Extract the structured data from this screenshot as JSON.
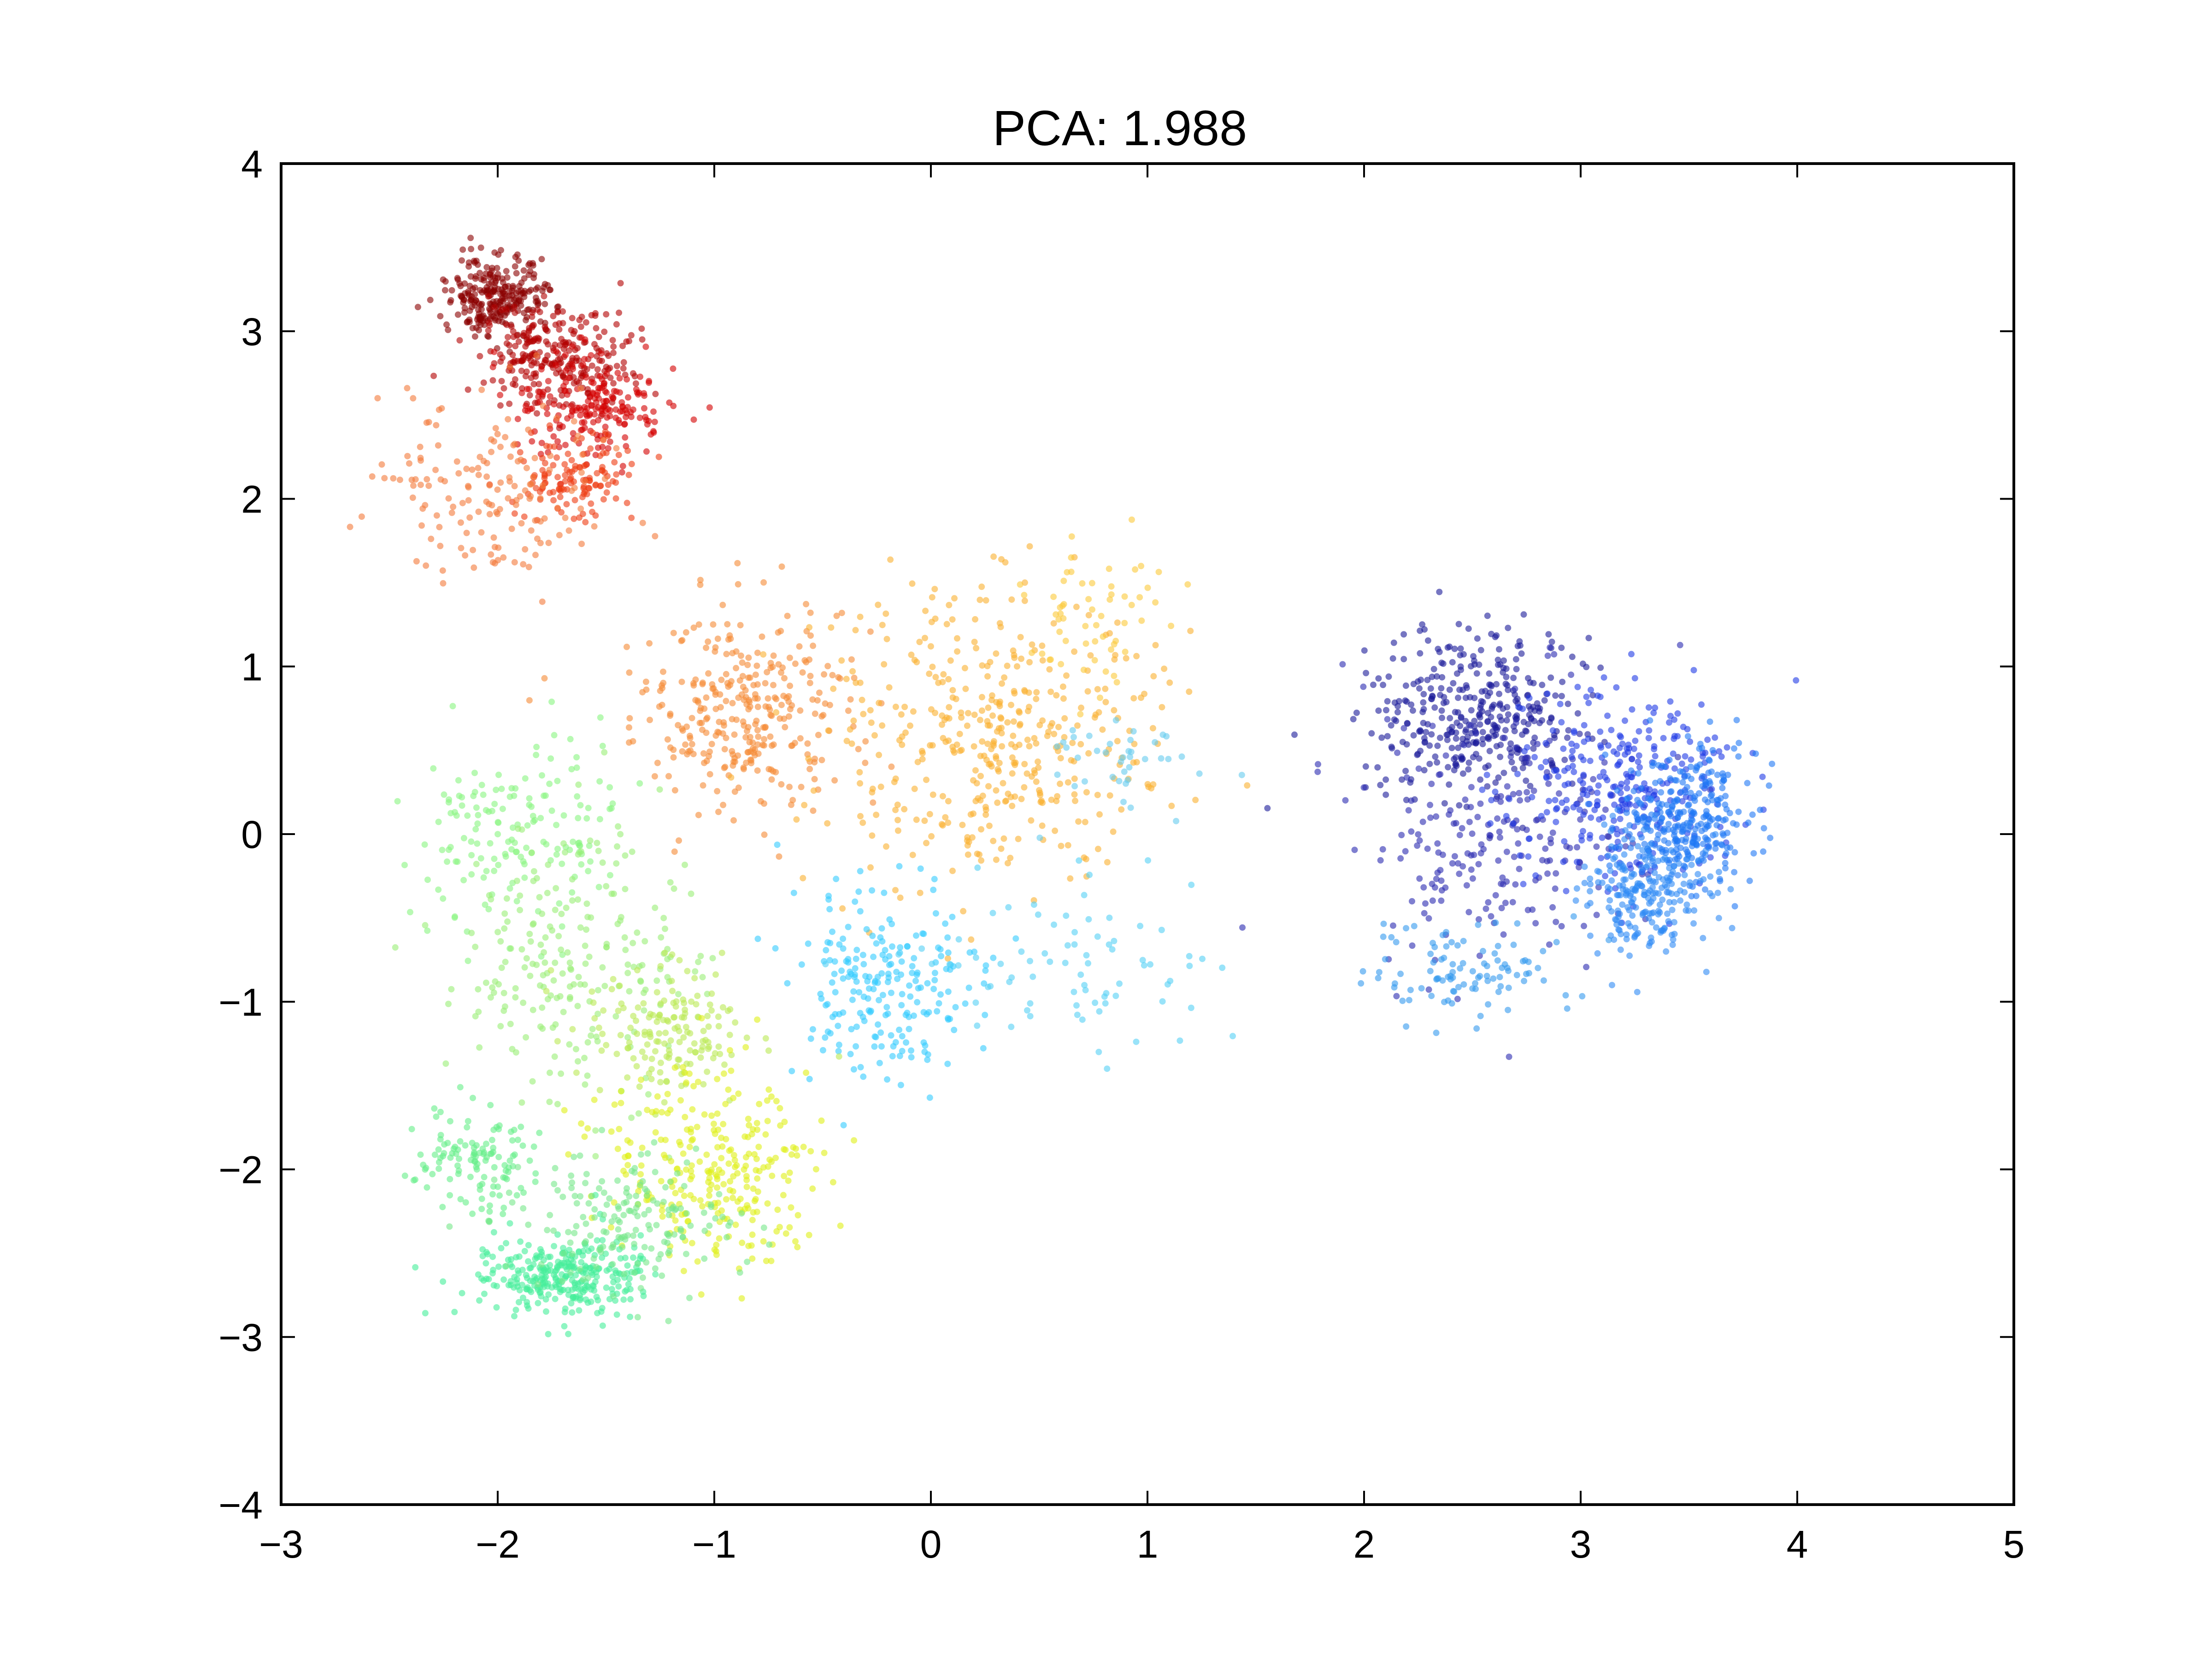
{
  "chart_data": {
    "type": "scatter",
    "title": "PCA: 1.988",
    "xlabel": "",
    "ylabel": "",
    "xlim": [
      -3,
      5
    ],
    "ylim": [
      -4,
      4
    ],
    "xticks": [
      -3,
      -2,
      -1,
      0,
      1,
      2,
      3,
      4,
      5
    ],
    "yticks": [
      -4,
      -3,
      -2,
      -1,
      0,
      1,
      2,
      3,
      4
    ],
    "xtick_labels": [
      "−3",
      "−2",
      "−1",
      "0",
      "1",
      "2",
      "3",
      "4",
      "5"
    ],
    "ytick_labels": [
      "−4",
      "−3",
      "−2",
      "−1",
      "0",
      "1",
      "2",
      "3",
      "4"
    ],
    "grid": false,
    "colormap": "jet",
    "clusters": [
      {
        "color": "#8b0000",
        "center": [
          -2.0,
          3.2
        ],
        "spread": [
          0.12,
          0.12
        ],
        "count": 260
      },
      {
        "color": "#b30000",
        "center": [
          -1.75,
          2.85
        ],
        "spread": [
          0.18,
          0.15
        ],
        "count": 260
      },
      {
        "color": "#d40000",
        "center": [
          -1.55,
          2.55
        ],
        "spread": [
          0.18,
          0.15
        ],
        "count": 200
      },
      {
        "color": "#ee3a10",
        "center": [
          -1.65,
          2.1
        ],
        "spread": [
          0.15,
          0.12
        ],
        "count": 120
      },
      {
        "color": "#f47a3a",
        "center": [
          -2.0,
          2.05
        ],
        "spread": [
          0.28,
          0.28
        ],
        "count": 160
      },
      {
        "color": "#f58a35",
        "center": [
          -0.85,
          0.75
        ],
        "spread": [
          0.25,
          0.3
        ],
        "count": 320
      },
      {
        "color": "#fab030",
        "center": [
          0.3,
          0.6
        ],
        "spread": [
          0.4,
          0.45
        ],
        "count": 420
      },
      {
        "color": "#fbc93a",
        "center": [
          0.75,
          1.3
        ],
        "spread": [
          0.15,
          0.2
        ],
        "count": 60
      },
      {
        "color": "#33ccff",
        "center": [
          -0.2,
          -0.9
        ],
        "spread": [
          0.22,
          0.3
        ],
        "count": 220
      },
      {
        "color": "#55d0f5",
        "center": [
          0.6,
          -0.8
        ],
        "spread": [
          0.35,
          0.25
        ],
        "count": 80
      },
      {
        "color": "#66ccee",
        "center": [
          0.85,
          0.45
        ],
        "spread": [
          0.2,
          0.15
        ],
        "count": 40
      },
      {
        "color": "#88f580",
        "center": [
          -1.9,
          0.0
        ],
        "spread": [
          0.25,
          0.3
        ],
        "count": 160
      },
      {
        "color": "#99ee77",
        "center": [
          -1.65,
          -0.8
        ],
        "spread": [
          0.3,
          0.4
        ],
        "count": 220
      },
      {
        "color": "#bbea55",
        "center": [
          -1.2,
          -1.2
        ],
        "spread": [
          0.2,
          0.2
        ],
        "count": 160
      },
      {
        "color": "#dff018",
        "center": [
          -1.05,
          -2.0
        ],
        "spread": [
          0.25,
          0.3
        ],
        "count": 280
      },
      {
        "color": "#44ee99",
        "center": [
          -1.7,
          -2.65
        ],
        "spread": [
          0.2,
          0.12
        ],
        "count": 300
      },
      {
        "color": "#66ee88",
        "center": [
          -2.1,
          -1.95
        ],
        "spread": [
          0.15,
          0.15
        ],
        "count": 120
      },
      {
        "color": "#77e88a",
        "center": [
          -1.4,
          -2.3
        ],
        "spread": [
          0.25,
          0.2
        ],
        "count": 180
      },
      {
        "color": "#1a1a99",
        "center": [
          2.5,
          0.7
        ],
        "spread": [
          0.25,
          0.25
        ],
        "count": 380
      },
      {
        "color": "#2a2ab0",
        "center": [
          2.6,
          0.0
        ],
        "spread": [
          0.35,
          0.4
        ],
        "count": 220
      },
      {
        "color": "#1f3ae6",
        "center": [
          3.2,
          0.3
        ],
        "spread": [
          0.25,
          0.3
        ],
        "count": 300
      },
      {
        "color": "#1f78f5",
        "center": [
          3.5,
          0.1
        ],
        "spread": [
          0.15,
          0.2
        ],
        "count": 300
      },
      {
        "color": "#2f8af5",
        "center": [
          3.3,
          -0.35
        ],
        "spread": [
          0.15,
          0.2
        ],
        "count": 220
      },
      {
        "color": "#3399ee",
        "center": [
          2.5,
          -0.8
        ],
        "spread": [
          0.22,
          0.15
        ],
        "count": 100
      }
    ]
  }
}
